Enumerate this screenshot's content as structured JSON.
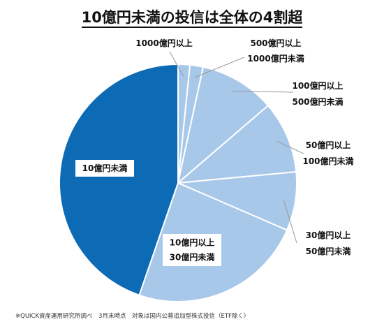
{
  "title": "10億円未満の投信は全体の4割超",
  "footnote": "※QUICK資産運用研究所調べ　3月末時点　対象は国内公募追加型株式投信（ETF除く）",
  "colors": {
    "dark_slice": "#0d6ab5",
    "light_slice": "#a8c8ea",
    "slice_border": "#ffffff",
    "leader_line": "#999999",
    "label_box": "#ffffff"
  },
  "chart_data": {
    "type": "pie",
    "title": "10億円未満の投信は全体の4割超",
    "start": "12 o'clock",
    "direction": "clockwise",
    "categories": [
      {
        "label": [
          "1000億円以上"
        ],
        "value": 1.6,
        "color": "light",
        "label_position": "outside"
      },
      {
        "label": [
          "500億円以上",
          "1000億円未満"
        ],
        "value": 1.8,
        "color": "light",
        "label_position": "outside"
      },
      {
        "label": [
          "100億円以上",
          "500億円未満"
        ],
        "value": 10.3,
        "color": "light",
        "label_position": "outside"
      },
      {
        "label": [
          "50億円以上",
          "100億円未満"
        ],
        "value": 9.8,
        "color": "light",
        "label_position": "outside"
      },
      {
        "label": [
          "30億円以上",
          "50億円未満"
        ],
        "value": 8.0,
        "color": "light",
        "label_position": "outside"
      },
      {
        "label": [
          "10億円以上",
          "30億円未満"
        ],
        "value": 23.8,
        "color": "light",
        "label_position": "inside"
      },
      {
        "label": [
          "10億円未満"
        ],
        "value": 44.7,
        "color": "dark",
        "label_position": "inside"
      }
    ]
  }
}
